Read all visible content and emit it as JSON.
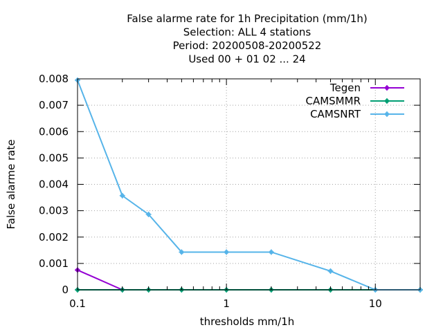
{
  "chart_data": {
    "type": "line",
    "title_lines": [
      "False alarme rate  for 1h Precipitation (mm/1h)",
      "Selection: ALL      4 stations",
      "Period: 20200508-20200522",
      "Used  00  + 01 02 ... 24"
    ],
    "xlabel": "thresholds mm/1h",
    "ylabel": "False alarme rate",
    "xscale": "log",
    "xlim": [
      0.1,
      20
    ],
    "ylim": [
      0,
      0.008
    ],
    "xticks": [
      0.1,
      1,
      10
    ],
    "xtick_labels": [
      "0.1",
      "1",
      "10"
    ],
    "yticks": [
      0,
      0.001,
      0.002,
      0.003,
      0.004,
      0.005,
      0.006,
      0.007,
      0.008
    ],
    "ytick_labels": [
      "0",
      "0.001",
      "0.002",
      "0.003",
      "0.004",
      "0.005",
      "0.006",
      "0.007",
      "0.008"
    ],
    "grid": true,
    "legend_position": "top-right",
    "x": [
      0.1,
      0.2,
      0.3,
      0.5,
      1,
      2,
      5,
      10,
      20
    ],
    "series": [
      {
        "name": "Tegen",
        "color": "#9400d3",
        "values": [
          0.00075,
          0,
          null,
          null,
          null,
          null,
          null,
          null,
          null
        ]
      },
      {
        "name": "CAMSMMR",
        "color": "#009e73",
        "values": [
          0,
          0,
          0,
          0,
          0,
          0,
          0,
          0,
          0
        ]
      },
      {
        "name": "CAMSNRT",
        "color": "#56b4e9",
        "values": [
          0.00795,
          0.00357,
          0.00286,
          0.00143,
          0.00143,
          0.00143,
          0.00071,
          0,
          0
        ]
      }
    ]
  }
}
